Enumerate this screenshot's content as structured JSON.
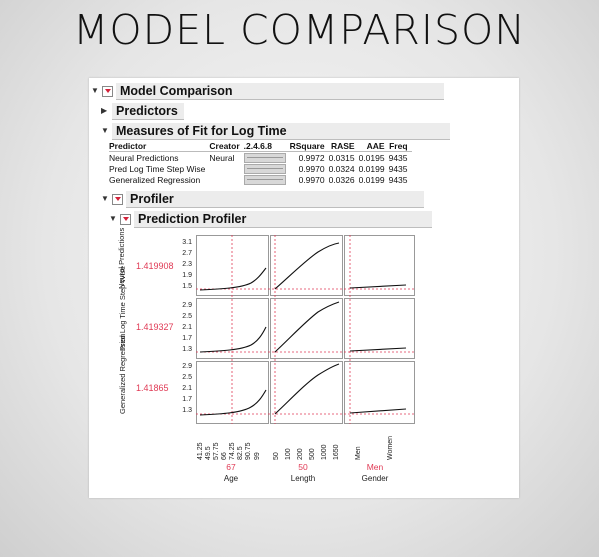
{
  "slide_title": "MODEL COMPARISON",
  "outline": {
    "model_comparison": "Model Comparison",
    "predictors": "Predictors",
    "measures": "Measures of Fit for Log Time",
    "profiler": "Profiler",
    "prediction_profiler": "Prediction Profiler"
  },
  "fit_table": {
    "headers": [
      "Predictor",
      "Creator",
      ".2.4.6.8",
      "RSquare",
      "RASE",
      "AAE",
      "Freq"
    ],
    "rows": [
      {
        "predictor": "Neural Predictions",
        "creator": "Neural",
        "rsquare": "0.9972",
        "rase": "0.0315",
        "aae": "0.0195",
        "freq": "9435"
      },
      {
        "predictor": "Pred Log Time Step Wise",
        "creator": "",
        "rsquare": "0.9970",
        "rase": "0.0324",
        "aae": "0.0199",
        "freq": "9435"
      },
      {
        "predictor": "Generalized Regression",
        "creator": "",
        "rsquare": "0.9970",
        "rase": "0.0326",
        "aae": "0.0199",
        "freq": "9435"
      }
    ]
  },
  "profiler": {
    "responses": [
      {
        "label": "Neural Predictions",
        "value": "1.419908",
        "ticks": [
          "3.1",
          "2.7",
          "2.3",
          "1.9",
          "1.5"
        ]
      },
      {
        "label": "Pred Log Time Step Wise",
        "value": "1.419327",
        "ticks": [
          "2.9",
          "2.5",
          "2.1",
          "1.7",
          "1.3"
        ]
      },
      {
        "label": "Generalized Regression",
        "value": "1.41865",
        "ticks": [
          "2.9",
          "2.5",
          "2.1",
          "1.7",
          "1.3"
        ]
      }
    ],
    "factors": [
      {
        "name": "Age",
        "value": "67",
        "ticks": [
          "41.25",
          "49.5",
          "57.75",
          "66",
          "74.25",
          "82.5",
          "90.75",
          "99"
        ]
      },
      {
        "name": "Length",
        "value": "50",
        "ticks": [
          "50",
          "100",
          "200",
          "500",
          "1000",
          "1650"
        ]
      },
      {
        "name": "Gender",
        "value": "Men",
        "ticks": [
          "Men",
          "Women"
        ]
      }
    ]
  },
  "colors": {
    "accent": "#e03a55",
    "curve": "#111111"
  }
}
